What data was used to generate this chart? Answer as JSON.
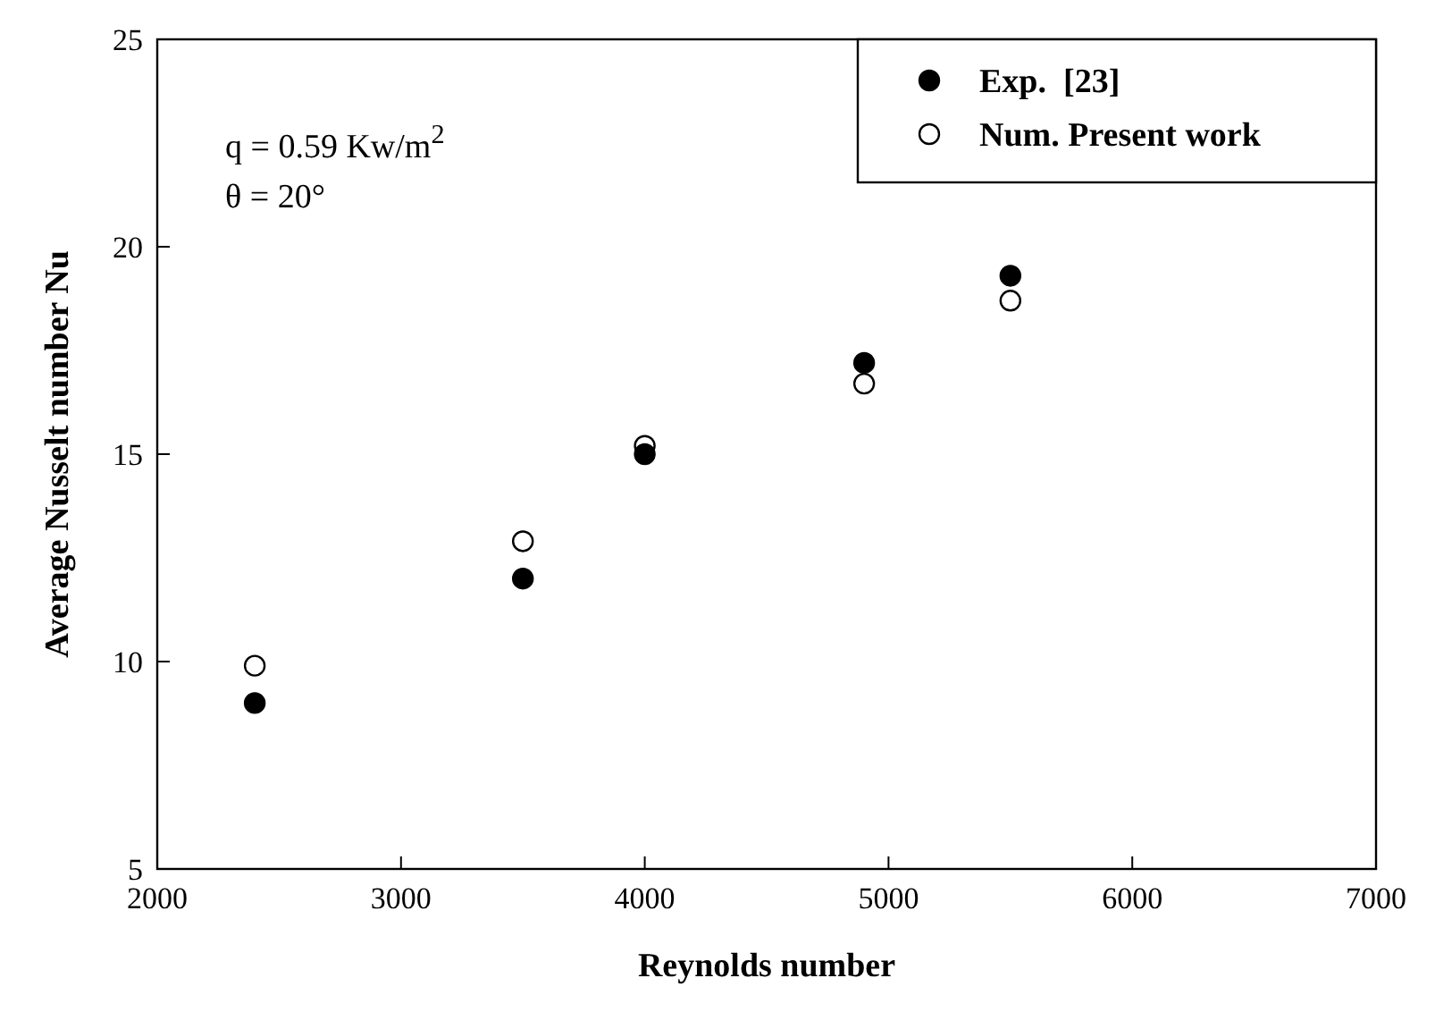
{
  "chart_data": {
    "type": "scatter",
    "xlabel": "Reynolds number",
    "ylabel": "Average Nusselt number Nu",
    "annotations": [
      "q = 0.59 Kw/m$^{2}$",
      "θ = 20°"
    ],
    "xlim": [
      2000,
      7000
    ],
    "xticks": [
      2000,
      3000,
      4000,
      5000,
      6000,
      7000
    ],
    "ylim": [
      5,
      25
    ],
    "yticks": [
      5,
      10,
      15,
      20,
      25
    ],
    "grid": false,
    "legend": "top right",
    "marker": "circle",
    "series": [
      {
        "name": "Exp.  [23]",
        "color": "#000000",
        "x": [
          2400,
          3500,
          4000,
          4900,
          5500
        ],
        "values": [
          9,
          12,
          15,
          17.2,
          19.3
        ]
      },
      {
        "name": "Num. Present work",
        "color": "#ffffff",
        "x": [
          2400,
          3500,
          4000,
          4900,
          5500
        ],
        "values": [
          9.9,
          12.9,
          15.2,
          16.7,
          18.7
        ]
      }
    ]
  }
}
